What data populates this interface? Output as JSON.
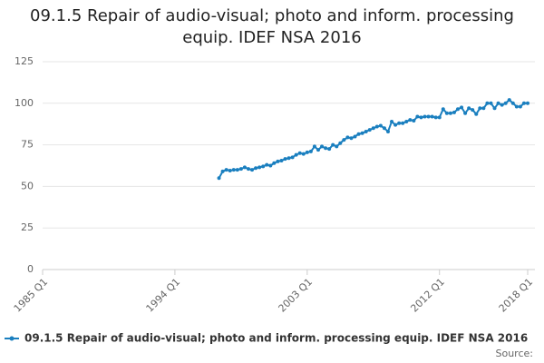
{
  "chart_data": {
    "type": "line",
    "title": "09.1.5 Repair of audio-visual; photo and inform. processing equip. IDEF NSA 2016",
    "source": "Source:",
    "categories": [
      "1985 Q1",
      null,
      null,
      null,
      null,
      null,
      null,
      null,
      null,
      null,
      null,
      null,
      null,
      null,
      null,
      null,
      null,
      null,
      null,
      null,
      null,
      null,
      null,
      null,
      null,
      null,
      null,
      null,
      null,
      null,
      null,
      null,
      null,
      null,
      null,
      null,
      "1994 Q1",
      null,
      null,
      null,
      null,
      null,
      null,
      null,
      null,
      null,
      null,
      null,
      null,
      null,
      null,
      null,
      null,
      null,
      null,
      null,
      null,
      null,
      null,
      null,
      null,
      null,
      null,
      null,
      null,
      null,
      null,
      null,
      null,
      null,
      null,
      null,
      "2003 Q1",
      null,
      null,
      null,
      null,
      null,
      null,
      null,
      null,
      null,
      null,
      null,
      null,
      null,
      null,
      null,
      null,
      null,
      null,
      null,
      null,
      null,
      null,
      null,
      null,
      null,
      null,
      null,
      null,
      null,
      null,
      null,
      null,
      null,
      null,
      null,
      "2012 Q1",
      null,
      null,
      null,
      null,
      null,
      null,
      null,
      null,
      null,
      null,
      null,
      null,
      null,
      null,
      null,
      null,
      null,
      null,
      null,
      null,
      null,
      null,
      null,
      "2018 Q1"
    ],
    "series": [
      {
        "name": "09.1.5 Repair of audio-visual; photo and inform. processing equip. IDEF NSA 2016",
        "color": "#1a7fbf",
        "values": [
          null,
          null,
          null,
          null,
          null,
          null,
          null,
          null,
          null,
          null,
          null,
          null,
          null,
          null,
          null,
          null,
          null,
          null,
          null,
          null,
          null,
          null,
          null,
          null,
          null,
          null,
          null,
          null,
          null,
          null,
          null,
          null,
          null,
          null,
          null,
          null,
          null,
          null,
          null,
          null,
          null,
          null,
          null,
          null,
          null,
          null,
          null,
          null,
          55,
          59,
          60,
          59.5,
          60,
          60,
          60.5,
          61.5,
          60.5,
          60,
          61,
          61.5,
          62,
          63,
          62.5,
          64,
          65,
          65.5,
          66.5,
          67,
          67.5,
          69,
          70,
          69.5,
          70.5,
          71,
          74,
          72,
          74,
          73,
          72.5,
          75,
          74,
          76,
          78,
          79.5,
          79,
          80,
          81.5,
          82,
          83,
          84,
          85,
          86,
          86.5,
          85,
          83,
          89,
          87,
          88,
          88,
          89,
          90,
          89.5,
          92,
          91.5,
          92,
          92,
          92,
          91.5,
          91.5,
          96.5,
          94,
          94,
          94.5,
          96.5,
          97.5,
          94,
          97,
          96,
          93.5,
          97,
          97,
          100,
          100,
          97,
          100,
          99,
          100,
          102,
          100,
          98,
          98,
          100,
          100
        ]
      }
    ],
    "ylim": [
      0,
      125
    ],
    "yticks": [
      0,
      25,
      50,
      75,
      100,
      125
    ],
    "grid": true
  }
}
